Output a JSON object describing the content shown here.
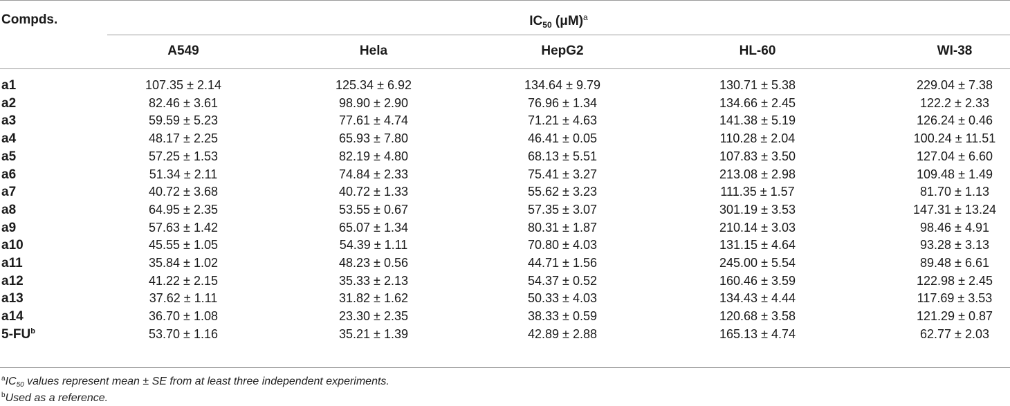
{
  "table": {
    "compds_header": "Compds.",
    "ic50": {
      "prefix": "IC",
      "subscript": "50",
      "unit": " (μM)",
      "superscript": "a"
    },
    "columns": [
      "A549",
      "Hela",
      "HepG2",
      "HL-60",
      "WI-38"
    ],
    "rows": [
      {
        "compound": "a1",
        "sup": "",
        "values": [
          "107.35 ± 2.14",
          "125.34 ± 6.92",
          "134.64 ± 9.79",
          "130.71 ± 5.38",
          "229.04 ± 7.38"
        ]
      },
      {
        "compound": "a2",
        "sup": "",
        "values": [
          "82.46 ± 3.61",
          "98.90 ± 2.90",
          "76.96 ± 1.34",
          "134.66 ± 2.45",
          "122.2 ± 2.33"
        ]
      },
      {
        "compound": "a3",
        "sup": "",
        "values": [
          "59.59 ± 5.23",
          "77.61 ± 4.74",
          "71.21 ± 4.63",
          "141.38 ± 5.19",
          "126.24 ± 0.46"
        ]
      },
      {
        "compound": "a4",
        "sup": "",
        "values": [
          "48.17 ± 2.25",
          "65.93 ± 7.80",
          "46.41 ± 0.05",
          "110.28 ± 2.04",
          "100.24 ± 11.51"
        ]
      },
      {
        "compound": "a5",
        "sup": "",
        "values": [
          "57.25 ± 1.53",
          "82.19 ± 4.80",
          "68.13 ± 5.51",
          "107.83 ± 3.50",
          "127.04 ± 6.60"
        ]
      },
      {
        "compound": "a6",
        "sup": "",
        "values": [
          "51.34 ± 2.11",
          "74.84 ± 2.33",
          "75.41 ± 3.27",
          "213.08 ± 2.98",
          "109.48 ± 1.49"
        ]
      },
      {
        "compound": "a7",
        "sup": "",
        "values": [
          "40.72 ± 3.68",
          "40.72 ± 1.33",
          "55.62 ± 3.23",
          "111.35 ± 1.57",
          "81.70 ± 1.13"
        ]
      },
      {
        "compound": "a8",
        "sup": "",
        "values": [
          "64.95 ± 2.35",
          "53.55 ± 0.67",
          "57.35 ± 3.07",
          "301.19 ± 3.53",
          "147.31 ± 13.24"
        ]
      },
      {
        "compound": "a9",
        "sup": "",
        "values": [
          "57.63 ± 1.42",
          "65.07 ± 1.34",
          "80.31 ± 1.87",
          "210.14 ± 3.03",
          "98.46 ± 4.91"
        ]
      },
      {
        "compound": "a10",
        "sup": "",
        "values": [
          "45.55 ± 1.05",
          "54.39 ± 1.11",
          "70.80 ± 4.03",
          "131.15 ± 4.64",
          "93.28 ± 3.13"
        ]
      },
      {
        "compound": "a11",
        "sup": "",
        "values": [
          "35.84 ± 1.02",
          "48.23 ± 0.56",
          "44.71 ± 1.56",
          "245.00 ± 5.54",
          "89.48 ± 6.61"
        ]
      },
      {
        "compound": "a12",
        "sup": "",
        "values": [
          "41.22 ± 2.15",
          "35.33 ± 2.13",
          "54.37 ± 0.52",
          "160.46 ± 3.59",
          "122.98 ± 2.45"
        ]
      },
      {
        "compound": "a13",
        "sup": "",
        "values": [
          "37.62 ± 1.11",
          "31.82 ± 1.62",
          "50.33 ± 4.03",
          "134.43 ± 4.44",
          "117.69 ± 3.53"
        ]
      },
      {
        "compound": "a14",
        "sup": "",
        "values": [
          "36.70 ± 1.08",
          "23.30 ± 2.35",
          "38.33 ± 0.59",
          "120.68 ± 3.58",
          "121.29 ± 0.87"
        ]
      },
      {
        "compound": "5-FU",
        "sup": "b",
        "values": [
          "53.70 ± 1.16",
          "35.21 ± 1.39",
          "42.89 ± 2.88",
          "165.13 ± 4.74",
          "62.77 ± 2.03"
        ]
      }
    ]
  },
  "footnotes": {
    "a": {
      "mark": "a",
      "prefix": "IC",
      "subscript": "50",
      "text": " values represent mean ± SE from at least three independent experiments."
    },
    "b": {
      "mark": "b",
      "text": "Used as a reference."
    }
  }
}
